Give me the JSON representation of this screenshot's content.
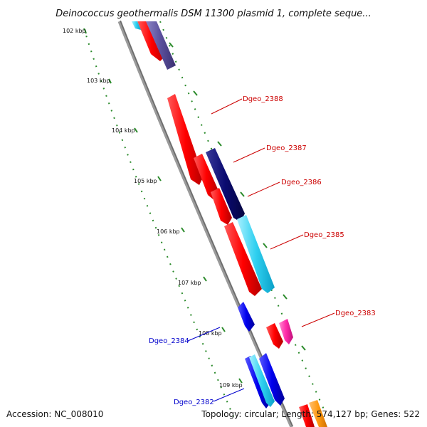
{
  "title": "Deinococcus geothermalis DSM 11300 plasmid 1, complete seque...",
  "footer": {
    "accession": "Accession: NC_008010",
    "summary": "Topology: circular; Length: 574,127 bp; Genes: 522"
  },
  "scale_ticks": [
    "102 kbp",
    "103 kbp",
    "104 kbp",
    "105 kbp",
    "106 kbp",
    "107 kbp",
    "108 kbp",
    "109 kbp"
  ],
  "colors": {
    "backbone": "#9a9a9a",
    "tick": "#2a8a2a",
    "forward_label": "#cc0000",
    "reverse_label": "#0000cc"
  },
  "gene_labels": [
    {
      "text": "Dgeo_2388",
      "strand": "forward"
    },
    {
      "text": "Dgeo_2387",
      "strand": "forward"
    },
    {
      "text": "Dgeo_2386",
      "strand": "forward"
    },
    {
      "text": "Dgeo_2385",
      "strand": "forward"
    },
    {
      "text": "Dgeo_2383",
      "strand": "forward"
    },
    {
      "text": "Dgeo_2384",
      "strand": "reverse"
    },
    {
      "text": "Dgeo_2382",
      "strand": "reverse"
    }
  ]
}
